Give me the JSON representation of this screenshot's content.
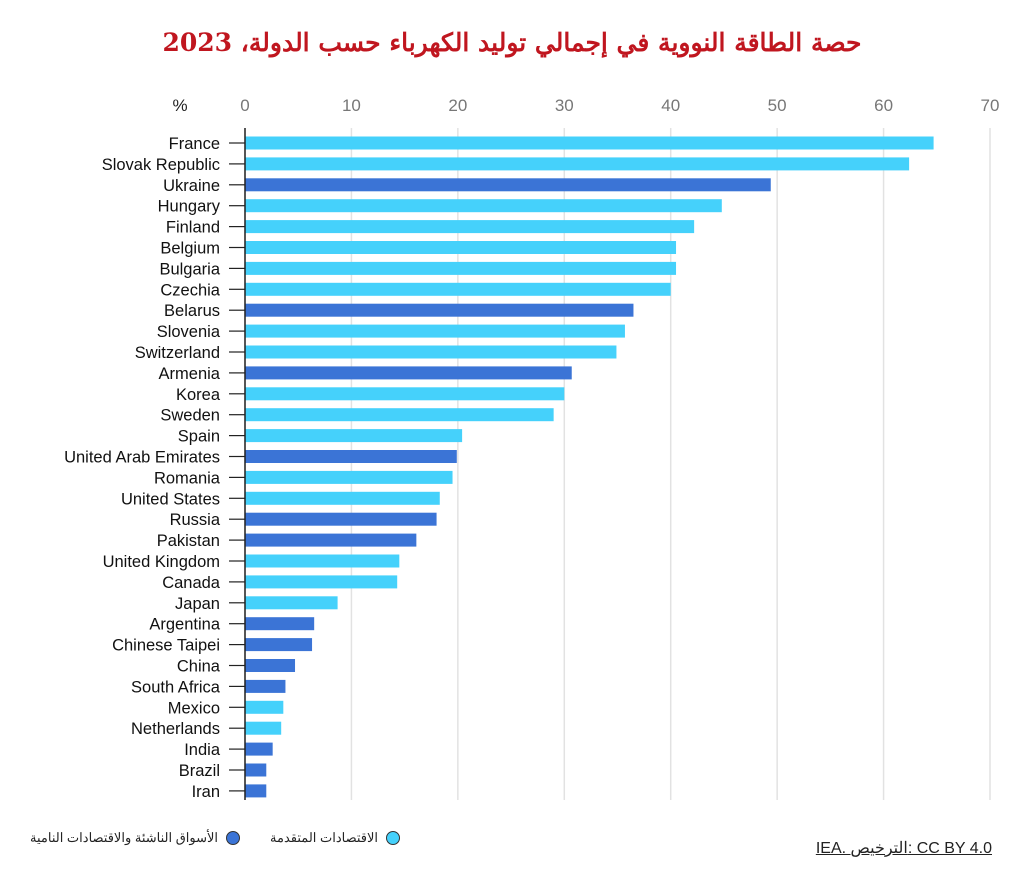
{
  "chart_data": {
    "type": "bar",
    "orientation": "horizontal",
    "title": "حصة الطاقة النووية في إجمالي توليد الكهرباء حسب الدولة، 2023",
    "xlabel": "%",
    "xlim": [
      0,
      70
    ],
    "xticks": [
      0,
      10,
      20,
      30,
      40,
      50,
      60,
      70
    ],
    "grid": true,
    "legend": [
      {
        "name": "الاقتصادات المتقدمة",
        "color": "#45d1fb"
      },
      {
        "name": "الأسواق الناشئة والاقتصادات النامية",
        "color": "#3b74d6"
      }
    ],
    "categories": [
      "France",
      "Slovak Republic",
      "Ukraine",
      "Hungary",
      "Finland",
      "Belgium",
      "Bulgaria",
      "Czechia",
      "Belarus",
      "Slovenia",
      "Switzerland",
      "Armenia",
      "Korea",
      "Sweden",
      "Spain",
      "United Arab Emirates",
      "Romania",
      "United States",
      "Russia",
      "Pakistan",
      "United Kingdom",
      "Canada",
      "Japan",
      "Argentina",
      "Chinese Taipei",
      "China",
      "South Africa",
      "Mexico",
      "Netherlands",
      "India",
      "Brazil",
      "Iran"
    ],
    "values": [
      64.7,
      62.4,
      49.4,
      44.8,
      42.2,
      40.5,
      40.5,
      40.0,
      36.5,
      35.7,
      34.9,
      30.7,
      30.0,
      29.0,
      20.4,
      19.9,
      19.5,
      18.3,
      18.0,
      16.1,
      14.5,
      14.3,
      8.7,
      6.5,
      6.3,
      4.7,
      3.8,
      3.6,
      3.4,
      2.6,
      2.0,
      2.0
    ],
    "groups": [
      0,
      0,
      1,
      0,
      0,
      0,
      0,
      0,
      1,
      0,
      0,
      1,
      0,
      0,
      0,
      1,
      0,
      0,
      1,
      1,
      0,
      0,
      0,
      1,
      1,
      1,
      1,
      0,
      0,
      1,
      1,
      1
    ]
  },
  "license": "IEA. الترخيص: CC BY 4.0"
}
